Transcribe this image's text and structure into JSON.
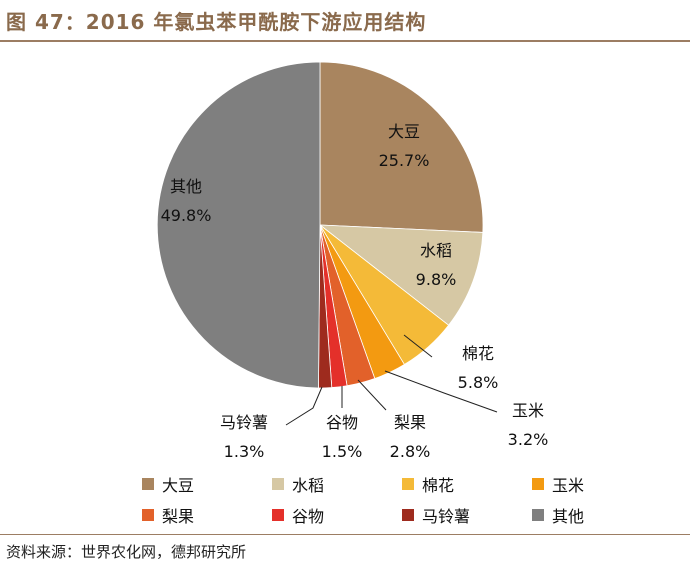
{
  "figure": {
    "title": "图 47：2016 年氯虫苯甲酰胺下游应用结构",
    "source": "资料来源：世界农化网，德邦研究所"
  },
  "chart_data": {
    "type": "pie",
    "title": "",
    "start_angle": "12 o'clock",
    "direction": "clockwise",
    "slices": [
      {
        "label": "大豆",
        "value": 25.7,
        "value_label": "25.7%",
        "color": "#a9855f"
      },
      {
        "label": "水稻",
        "value": 9.8,
        "value_label": "9.8%",
        "color": "#d6c8a4"
      },
      {
        "label": "棉花",
        "value": 5.8,
        "value_label": "5.8%",
        "color": "#f4ba38"
      },
      {
        "label": "玉米",
        "value": 3.2,
        "value_label": "3.2%",
        "color": "#f39a11"
      },
      {
        "label": "梨果",
        "value": 2.8,
        "value_label": "2.8%",
        "color": "#e2612a"
      },
      {
        "label": "谷物",
        "value": 1.5,
        "value_label": "1.5%",
        "color": "#e4302a"
      },
      {
        "label": "马铃薯",
        "value": 1.3,
        "value_label": "1.3%",
        "color": "#9e2b1e"
      },
      {
        "label": "其他",
        "value": 49.8,
        "value_label": "49.8%",
        "color": "#7f7f7f"
      }
    ],
    "legend_position": "bottom"
  }
}
